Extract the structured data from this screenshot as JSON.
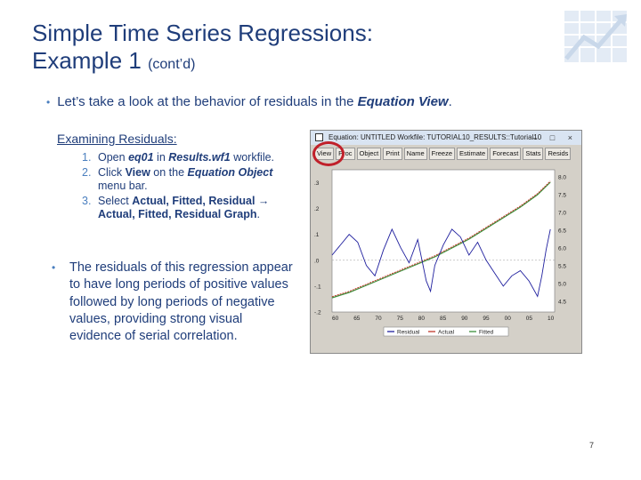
{
  "slide": {
    "title_main": "Simple Time Series Regressions:",
    "title_line2": "Example 1",
    "title_small": "(cont’d)",
    "bullet1_prefix": "Let’s take a look at the behavior of residuals in the ",
    "bullet1_em": "Equation View",
    "bullet1_suffix": ".",
    "examining_heading": "Examining Residuals:",
    "steps": [
      {
        "num": "1.",
        "pre": "Open ",
        "em": "eq01",
        "mid": " in ",
        "em2": "Results.wf1",
        "post": " workfile."
      },
      {
        "num": "2.",
        "pre": "Click ",
        "b1": "View",
        "mid": " on the ",
        "b2": "Equation Object",
        "post": " menu bar."
      },
      {
        "num": "3.",
        "pre": "Select ",
        "b1": "Actual, Fitted, Residual →",
        "mid": " ",
        "b2": "Actual, Fitted, Residual Graph",
        "post": "."
      }
    ],
    "bullet2": "The residuals of this regression appear to have long periods of positive values followed by long periods of negative values, providing strong visual evidence of serial correlation.",
    "page_number": "7"
  },
  "window": {
    "title": "Equation: UNTITLED   Workfile: TUTORIAL10_RESULTS::Tutorial10",
    "controls": "– □ ×",
    "toolbar": [
      "View",
      "Proc",
      "Object",
      "Print",
      "Name",
      "Freeze",
      "Estimate",
      "Forecast",
      "Stats",
      "Resids"
    ]
  },
  "chart_data": {
    "type": "line",
    "x_ticks": [
      "60",
      "65",
      "70",
      "75",
      "80",
      "85",
      "90",
      "95",
      "00",
      "05",
      "10"
    ],
    "right_ticks": [
      "8.0",
      "7.5",
      "7.0",
      "6.5",
      "6.0",
      "5.5",
      "5.0",
      "4.5"
    ],
    "left_ticks": [
      ".3",
      ".2",
      ".1",
      ".0",
      "-.1",
      "-.2"
    ],
    "legend": [
      "Residual",
      "Actual",
      "Fitted"
    ],
    "colors": {
      "residual": "#1f1f9e",
      "actual": "#c0392b",
      "fitted": "#3a8f3a"
    },
    "left_range": [
      -0.2,
      0.35
    ],
    "right_range": [
      4.2,
      8.2
    ],
    "x_range": [
      1959,
      2011
    ],
    "actual_fitted": [
      [
        1959,
        4.6
      ],
      [
        1963,
        4.75
      ],
      [
        1967,
        4.95
      ],
      [
        1971,
        5.15
      ],
      [
        1975,
        5.35
      ],
      [
        1979,
        5.55
      ],
      [
        1983,
        5.75
      ],
      [
        1987,
        6.0
      ],
      [
        1991,
        6.25
      ],
      [
        1995,
        6.55
      ],
      [
        1999,
        6.85
      ],
      [
        2003,
        7.15
      ],
      [
        2007,
        7.5
      ],
      [
        2010,
        7.85
      ]
    ],
    "residual": [
      [
        1959,
        0.02
      ],
      [
        1961,
        0.06
      ],
      [
        1963,
        0.1
      ],
      [
        1965,
        0.07
      ],
      [
        1967,
        -0.02
      ],
      [
        1969,
        -0.06
      ],
      [
        1971,
        0.04
      ],
      [
        1973,
        0.12
      ],
      [
        1975,
        0.05
      ],
      [
        1977,
        -0.01
      ],
      [
        1979,
        0.08
      ],
      [
        1981,
        -0.08
      ],
      [
        1982,
        -0.12
      ],
      [
        1983,
        -0.02
      ],
      [
        1985,
        0.06
      ],
      [
        1987,
        0.12
      ],
      [
        1989,
        0.09
      ],
      [
        1991,
        0.02
      ],
      [
        1993,
        0.07
      ],
      [
        1995,
        0.0
      ],
      [
        1997,
        -0.05
      ],
      [
        1999,
        -0.1
      ],
      [
        2001,
        -0.06
      ],
      [
        2003,
        -0.04
      ],
      [
        2005,
        -0.08
      ],
      [
        2007,
        -0.14
      ],
      [
        2008,
        -0.06
      ],
      [
        2009,
        0.04
      ],
      [
        2010,
        0.12
      ]
    ]
  }
}
